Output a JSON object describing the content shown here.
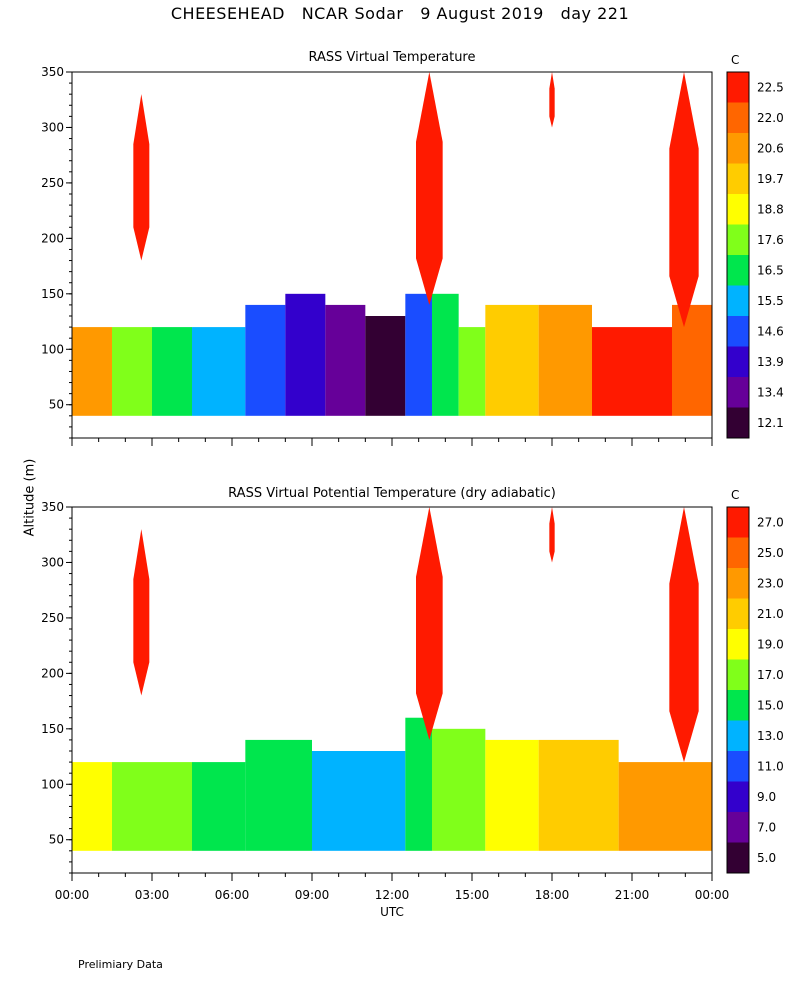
{
  "title": "CHEESEHEAD   NCAR Sodar   9 August 2019   day 221",
  "ylabel": "Altitude (m)",
  "xlabel": "UTC",
  "footnote": "Prelimiary Data",
  "colors": {
    "c1": "#330033",
    "c2": "#660099",
    "c3": "#3300cc",
    "c4": "#1a4dff",
    "c5": "#00b3ff",
    "c6": "#00e64d",
    "c7": "#80ff1a",
    "c8": "#ffff00",
    "c9": "#ffcc00",
    "c10": "#ff9900",
    "c11": "#ff6600",
    "c12": "#ff1a00"
  },
  "chart_data": [
    {
      "type": "heatmap",
      "title": "RASS Virtual Temperature",
      "xlabel": "UTC",
      "ylabel": "Altitude (m)",
      "x_ticks": [
        "00:00",
        "03:00",
        "06:00",
        "09:00",
        "12:00",
        "15:00",
        "18:00",
        "21:00",
        "00:00"
      ],
      "xlim_hours": [
        0,
        24
      ],
      "ylim": [
        20,
        350
      ],
      "y_ticks": [
        50,
        100,
        150,
        200,
        250,
        300,
        350
      ],
      "colorbar_unit": "C",
      "colorbar_labels": [
        "12.1",
        "13.4",
        "13.9",
        "14.6",
        "15.5",
        "16.5",
        "17.6",
        "18.8",
        "19.7",
        "20.6",
        "22.0",
        "22.5"
      ],
      "bands": [
        {
          "hour_start": 0.0,
          "hour_end": 1.5,
          "top": 120,
          "color_index": 10
        },
        {
          "hour_start": 1.5,
          "hour_end": 3.0,
          "top": 120,
          "color_index": 7
        },
        {
          "hour_start": 3.0,
          "hour_end": 4.5,
          "top": 120,
          "color_index": 6
        },
        {
          "hour_start": 4.5,
          "hour_end": 6.5,
          "top": 120,
          "color_index": 5
        },
        {
          "hour_start": 6.5,
          "hour_end": 8.0,
          "top": 140,
          "color_index": 4
        },
        {
          "hour_start": 8.0,
          "hour_end": 9.5,
          "top": 150,
          "color_index": 3
        },
        {
          "hour_start": 9.5,
          "hour_end": 11.0,
          "top": 140,
          "color_index": 2
        },
        {
          "hour_start": 11.0,
          "hour_end": 12.5,
          "top": 130,
          "color_index": 1
        },
        {
          "hour_start": 12.5,
          "hour_end": 13.5,
          "top": 150,
          "color_index": 4
        },
        {
          "hour_start": 13.5,
          "hour_end": 14.5,
          "top": 150,
          "color_index": 6
        },
        {
          "hour_start": 14.5,
          "hour_end": 15.5,
          "top": 120,
          "color_index": 7
        },
        {
          "hour_start": 15.5,
          "hour_end": 17.5,
          "top": 140,
          "color_index": 9
        },
        {
          "hour_start": 17.5,
          "hour_end": 19.5,
          "top": 140,
          "color_index": 10
        },
        {
          "hour_start": 19.5,
          "hour_end": 22.5,
          "top": 120,
          "color_index": 12
        },
        {
          "hour_start": 22.5,
          "hour_end": 24.0,
          "top": 140,
          "color_index": 11
        }
      ],
      "plumes": [
        {
          "hour_start": 2.3,
          "hour_end": 2.9,
          "bottom": 180,
          "top": 330,
          "color_index": 12
        },
        {
          "hour_start": 12.9,
          "hour_end": 13.9,
          "bottom": 140,
          "top": 350,
          "color_index": 12
        },
        {
          "hour_start": 17.9,
          "hour_end": 18.1,
          "bottom": 300,
          "top": 350,
          "color_index": 12
        },
        {
          "hour_start": 22.4,
          "hour_end": 23.5,
          "bottom": 120,
          "top": 350,
          "color_index": 12
        }
      ]
    },
    {
      "type": "heatmap",
      "title": "RASS Virtual Potential Temperature (dry adiabatic)",
      "xlabel": "UTC",
      "ylabel": "Altitude (m)",
      "x_ticks": [
        "00:00",
        "03:00",
        "06:00",
        "09:00",
        "12:00",
        "15:00",
        "18:00",
        "21:00",
        "00:00"
      ],
      "xlim_hours": [
        0,
        24
      ],
      "ylim": [
        20,
        350
      ],
      "y_ticks": [
        50,
        100,
        150,
        200,
        250,
        300,
        350
      ],
      "colorbar_unit": "C",
      "colorbar_labels": [
        "5.0",
        "7.0",
        "9.0",
        "11.0",
        "13.0",
        "15.0",
        "17.0",
        "19.0",
        "21.0",
        "23.0",
        "25.0",
        "27.0"
      ],
      "bands": [
        {
          "hour_start": 0.0,
          "hour_end": 1.5,
          "top": 120,
          "color_index": 8
        },
        {
          "hour_start": 1.5,
          "hour_end": 4.5,
          "top": 120,
          "color_index": 7
        },
        {
          "hour_start": 4.5,
          "hour_end": 6.5,
          "top": 120,
          "color_index": 6
        },
        {
          "hour_start": 6.5,
          "hour_end": 9.0,
          "top": 140,
          "color_index": 6
        },
        {
          "hour_start": 9.0,
          "hour_end": 12.5,
          "top": 130,
          "color_index": 5
        },
        {
          "hour_start": 12.5,
          "hour_end": 13.5,
          "top": 160,
          "color_index": 6
        },
        {
          "hour_start": 13.5,
          "hour_end": 15.5,
          "top": 150,
          "color_index": 7
        },
        {
          "hour_start": 15.5,
          "hour_end": 17.5,
          "top": 140,
          "color_index": 8
        },
        {
          "hour_start": 17.5,
          "hour_end": 20.5,
          "top": 140,
          "color_index": 9
        },
        {
          "hour_start": 20.5,
          "hour_end": 24.0,
          "top": 120,
          "color_index": 10
        }
      ],
      "plumes": [
        {
          "hour_start": 2.3,
          "hour_end": 2.9,
          "bottom": 180,
          "top": 330,
          "color_index": 12
        },
        {
          "hour_start": 12.9,
          "hour_end": 13.9,
          "bottom": 140,
          "top": 350,
          "color_index": 12
        },
        {
          "hour_start": 17.9,
          "hour_end": 18.1,
          "bottom": 300,
          "top": 350,
          "color_index": 12
        },
        {
          "hour_start": 22.4,
          "hour_end": 23.5,
          "bottom": 120,
          "top": 350,
          "color_index": 12
        }
      ]
    }
  ]
}
